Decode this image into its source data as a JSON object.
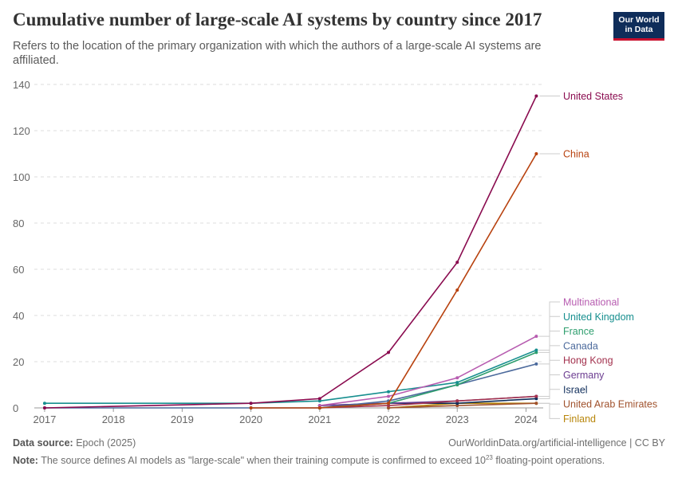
{
  "header": {
    "title": "Cumulative number of large-scale AI systems by country since 2017",
    "subtitle": "Refers to the location of the primary organization with which the authors of a large-scale AI systems are affiliated.",
    "logo_line1": "Our World",
    "logo_line2": "in Data"
  },
  "footer": {
    "source_label": "Data source:",
    "source_text": "Epoch (2025)",
    "url": "OurWorldinData.org/artificial-intelligence | CC BY",
    "note_label": "Note:",
    "note_text": "The source defines AI models as \"large-scale\" when their training compute is confirmed to exceed 10",
    "note_exp": "23",
    "note_tail": " floating-point operations."
  },
  "chart_data": {
    "type": "line",
    "x_tick_labels": [
      "2017",
      "2018",
      "2019",
      "2020",
      "2021",
      "2022",
      "2023",
      "2024"
    ],
    "y_ticks": [
      0,
      20,
      40,
      60,
      80,
      100,
      120,
      140
    ],
    "ylim": [
      0,
      140
    ],
    "grid": true,
    "legend": "right-labels",
    "series": [
      {
        "name": "United States",
        "color": "#8a0b4f",
        "points": [
          [
            2017.0,
            0
          ],
          [
            2020.0,
            2
          ],
          [
            2021.0,
            4
          ],
          [
            2022.0,
            24
          ],
          [
            2023.0,
            63
          ],
          [
            2024.15,
            135
          ]
        ]
      },
      {
        "name": "China",
        "color": "#b8420f",
        "points": [
          [
            2020.0,
            0
          ],
          [
            2021.0,
            0
          ],
          [
            2022.0,
            2
          ],
          [
            2023.0,
            51
          ],
          [
            2024.15,
            110
          ]
        ]
      },
      {
        "name": "Multinational",
        "color": "#b75cb0",
        "points": [
          [
            2021.0,
            1
          ],
          [
            2022.0,
            5
          ],
          [
            2023.0,
            13
          ],
          [
            2024.15,
            31
          ]
        ]
      },
      {
        "name": "United Kingdom",
        "color": "#178f8f",
        "points": [
          [
            2017.0,
            2
          ],
          [
            2020.0,
            2
          ],
          [
            2021.0,
            3
          ],
          [
            2022.0,
            7
          ],
          [
            2023.0,
            11
          ],
          [
            2024.15,
            25
          ]
        ]
      },
      {
        "name": "France",
        "color": "#2e9e6e",
        "points": [
          [
            2021.0,
            0
          ],
          [
            2022.0,
            2
          ],
          [
            2023.0,
            10
          ],
          [
            2024.15,
            24
          ]
        ]
      },
      {
        "name": "Canada",
        "color": "#4c6a9c",
        "points": [
          [
            2017.0,
            0
          ],
          [
            2020.0,
            0
          ],
          [
            2021.0,
            0
          ],
          [
            2022.0,
            3
          ],
          [
            2023.0,
            10
          ],
          [
            2024.15,
            19
          ]
        ]
      },
      {
        "name": "Hong Kong",
        "color": "#a3324e",
        "points": [
          [
            2021.0,
            0
          ],
          [
            2022.0,
            1
          ],
          [
            2023.0,
            3
          ],
          [
            2024.15,
            5
          ]
        ]
      },
      {
        "name": "Germany",
        "color": "#6c3d91",
        "points": [
          [
            2021.0,
            1
          ],
          [
            2022.0,
            2
          ],
          [
            2023.0,
            3
          ],
          [
            2024.15,
            5
          ]
        ]
      },
      {
        "name": "Israel",
        "color": "#0f2d5a",
        "points": [
          [
            2021.0,
            1
          ],
          [
            2022.0,
            2
          ],
          [
            2023.0,
            2
          ],
          [
            2024.15,
            4
          ]
        ]
      },
      {
        "name": "United Arab Emirates",
        "color": "#a0522d",
        "points": [
          [
            2022.0,
            0
          ],
          [
            2023.0,
            1
          ],
          [
            2024.15,
            2
          ]
        ]
      },
      {
        "name": "Finland",
        "color": "#b8860b",
        "points": [
          [
            2022.0,
            0
          ],
          [
            2023.0,
            2
          ],
          [
            2024.15,
            2
          ]
        ]
      }
    ]
  }
}
